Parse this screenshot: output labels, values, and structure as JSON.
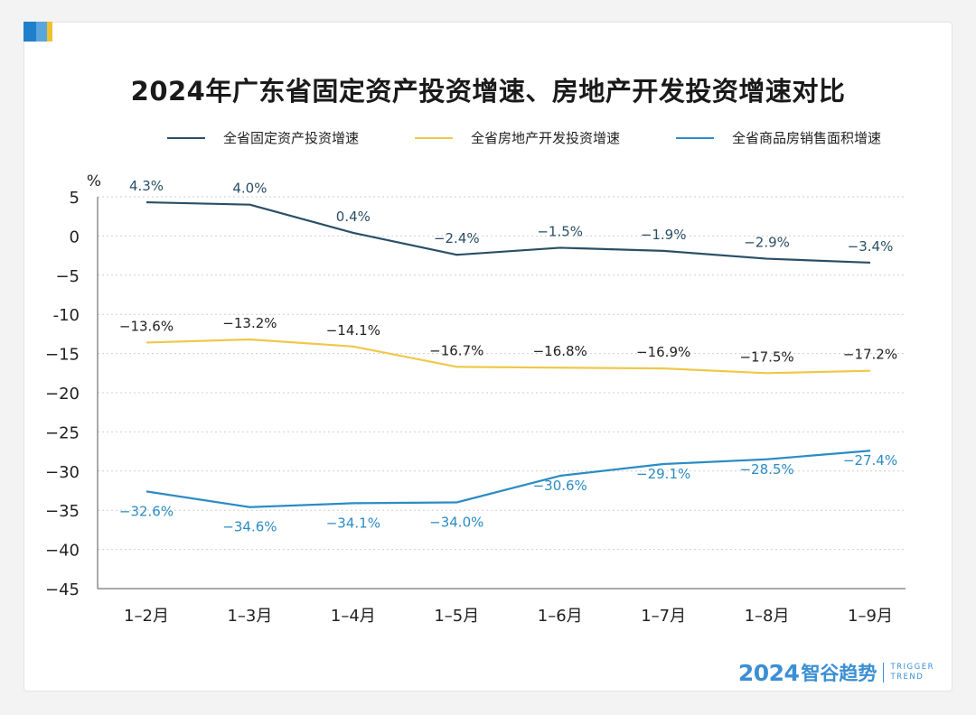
{
  "title": "2024年广东省固定资产投资增速、房地产开发投资增速对比",
  "footer": {
    "year": "2024",
    "brand": "智谷趋势",
    "en_line1": "TRIGGER",
    "en_line2": "TREND"
  },
  "colors": {
    "series1": "#2a4f66",
    "series2": "#efc84a",
    "series3": "#2b8cc4"
  },
  "chart_data": {
    "type": "line",
    "title": "2024年广东省固定资产投资增速、房地产开发投资增速对比",
    "ylabel": "%",
    "xlabel": "",
    "ylim": [
      -45,
      5
    ],
    "yticks": [
      5,
      0,
      -5,
      -10,
      -15,
      -20,
      -25,
      -30,
      -35,
      -40,
      -45
    ],
    "ytick_labels": [
      "5",
      "0",
      "−5",
      "-10",
      "−15",
      "−20",
      "−25",
      "−30",
      "−35",
      "−40",
      "−45"
    ],
    "categories": [
      "1–2月",
      "1–3月",
      "1–4月",
      "1–5月",
      "1–6月",
      "1–7月",
      "1–8月",
      "1–9月"
    ],
    "grid": true,
    "legend_position": "top",
    "series": [
      {
        "name": "全省固定资产投资增速",
        "values": [
          4.3,
          4.0,
          0.4,
          -2.4,
          -1.5,
          -1.9,
          -2.9,
          -3.4
        ],
        "labels": [
          "4.3%",
          "4.0%",
          "0.4%",
          "−2.4%",
          "−1.5%",
          "−1.9%",
          "−2.9%",
          "−3.4%"
        ]
      },
      {
        "name": "全省房地产开发投资增速",
        "values": [
          -13.6,
          -13.2,
          -14.1,
          -16.7,
          -16.8,
          -16.9,
          -17.5,
          -17.2
        ],
        "labels": [
          "−13.6%",
          "−13.2%",
          "−14.1%",
          "−16.7%",
          "−16.8%",
          "−16.9%",
          "−17.5%",
          "−17.2%"
        ]
      },
      {
        "name": "全省商品房销售面积增速",
        "values": [
          -32.6,
          -34.6,
          -34.1,
          -34.0,
          -30.6,
          -29.1,
          -28.5,
          -27.4
        ],
        "labels": [
          "−32.6%",
          "−34.6%",
          "−34.1%",
          "−34.0%",
          "−30.6%",
          "−29.1%",
          "−28.5%",
          "−27.4%"
        ]
      }
    ]
  }
}
